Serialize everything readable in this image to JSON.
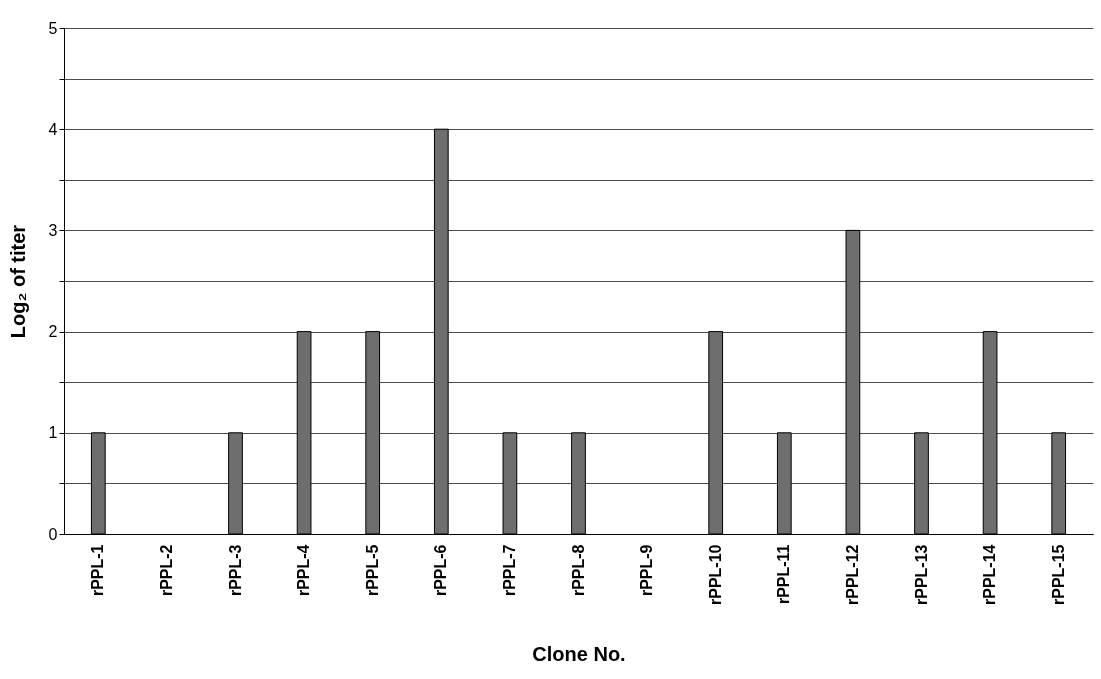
{
  "chart_data": {
    "type": "bar",
    "xlabel": "Clone No.",
    "ylabel": "Log₂ of titer",
    "categories": [
      "rPPL-1",
      "rPPL-2",
      "rPPL-3",
      "rPPL-4",
      "rPPL-5",
      "rPPL-6",
      "rPPL-7",
      "rPPL-8",
      "rPPL-9",
      "rPPL-10",
      "rPPL-11",
      "rPPL-12",
      "rPPL-13",
      "rPPL-14",
      "rPPL-15"
    ],
    "values": [
      1,
      0,
      1,
      2,
      2,
      4,
      1,
      1,
      0,
      2,
      1,
      3,
      1,
      2,
      1
    ],
    "color": "#6e6e6e",
    "ylim": [
      0,
      5
    ],
    "yticks": [
      0,
      {
        "value": 0.5,
        "label": null
      },
      1,
      {
        "value": 1.5,
        "label": null
      },
      2,
      {
        "value": 2.5,
        "label": null
      },
      3,
      {
        "value": 3.5,
        "label": null
      },
      4,
      {
        "value": 4.5,
        "label": null
      },
      5
    ],
    "grid": "y"
  }
}
